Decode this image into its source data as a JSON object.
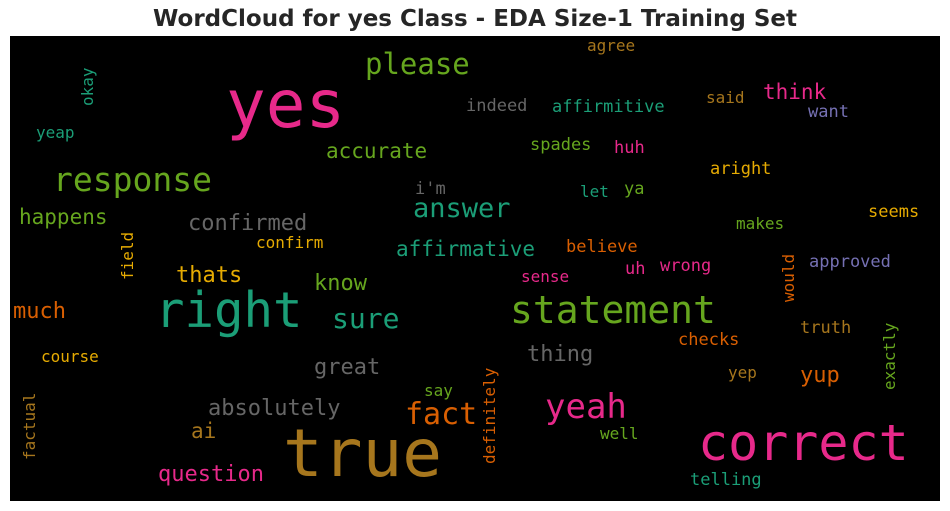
{
  "title": "WordCloud for yes Class - EDA Size-1 Training Set",
  "palette": {
    "pink": "#e7298a",
    "green": "#66a61e",
    "teal": "#1b9e77",
    "brown": "#a6761d",
    "gray": "#666666",
    "orange": "#d95f02",
    "gold": "#e6ab02",
    "purple": "#7570b3"
  },
  "words": {
    "yes": "yes",
    "please": "please",
    "agree": "agree",
    "okay": "okay",
    "yeap": "yeap",
    "indeed": "indeed",
    "affirmitive": "affirmitive",
    "said": "said",
    "think": "think",
    "want": "want",
    "accurate": "accurate",
    "spades": "spades",
    "huh": "huh",
    "response": "response",
    "im": "i'm",
    "let": "let",
    "ya": "ya",
    "aright": "aright",
    "answer": "answer",
    "happens": "happens",
    "confirmed": "confirmed",
    "makes": "makes",
    "seems": "seems",
    "field": "field",
    "confirm": "confirm",
    "affirmative": "affirmative",
    "believe": "believe",
    "approved": "approved",
    "would": "would",
    "wrong": "wrong",
    "uh": "uh",
    "sense": "sense",
    "thats": "thats",
    "know": "know",
    "right": "right",
    "statement": "statement",
    "much": "much",
    "sure": "sure",
    "truth": "truth",
    "exactly": "exactly",
    "checks": "checks",
    "thing": "thing",
    "course": "course",
    "great": "great",
    "yep": "yep",
    "yup": "yup",
    "factual": "factual",
    "say": "say",
    "definitely": "definitely",
    "absolutely": "absolutely",
    "fact": "fact",
    "yeah": "yeah",
    "ai": "ai",
    "well": "well",
    "true": "true",
    "correct": "correct",
    "question": "question",
    "telling": "telling"
  }
}
